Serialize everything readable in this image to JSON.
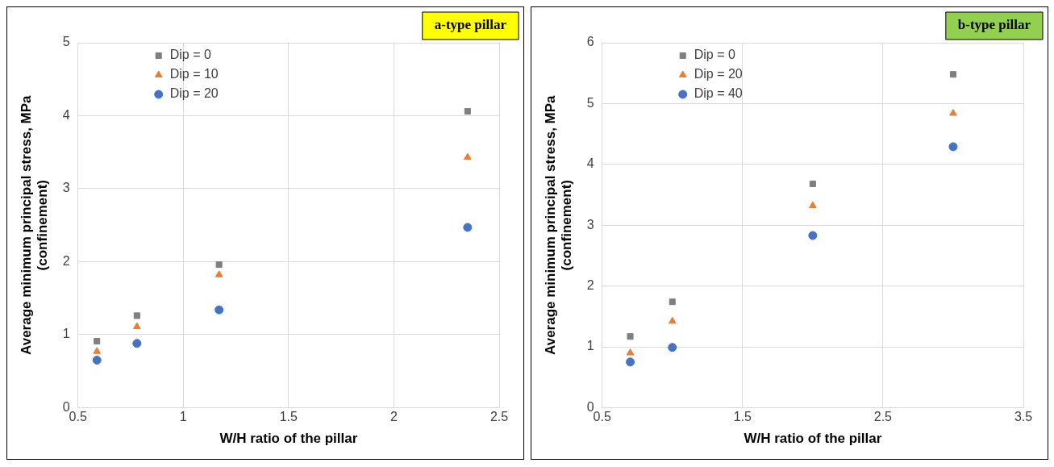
{
  "chart_data": [
    {
      "type": "scatter",
      "title": "a-type pillar",
      "xlabel": "W/H ratio of the pillar",
      "ylabel": "Average minimum principal stress, MPa\n(confinement)",
      "x": [
        0.59,
        0.78,
        1.17,
        2.35
      ],
      "xlim": [
        0.5,
        2.5
      ],
      "xticks": [
        0.5,
        1,
        1.5,
        2,
        2.5
      ],
      "ylim": [
        0,
        5
      ],
      "yticks": [
        0,
        1,
        2,
        3,
        4,
        5
      ],
      "grid": true,
      "legend": "top left",
      "series": [
        {
          "name": "Dip = 0",
          "color": "#7f7f7f",
          "marker": "square",
          "values": [
            0.91,
            1.26,
            1.96,
            4.06
          ]
        },
        {
          "name": "Dip = 10",
          "color": "#ed7d31",
          "marker": "triangle",
          "values": [
            0.77,
            1.11,
            1.82,
            3.43
          ]
        },
        {
          "name": "Dip = 20",
          "color": "#4472c4",
          "marker": "circle",
          "values": [
            0.65,
            0.88,
            1.34,
            2.47
          ]
        }
      ]
    },
    {
      "type": "scatter",
      "title": "b-type pillar",
      "xlabel": "W/H ratio of the pillar",
      "ylabel": "Average minimum principal stress, MPa\n(confinement)",
      "x": [
        0.7,
        1,
        2,
        3
      ],
      "xlim": [
        0.5,
        3.5
      ],
      "xticks": [
        0.5,
        1.5,
        2.5,
        3.5
      ],
      "ylim": [
        0,
        6
      ],
      "yticks": [
        0,
        1,
        2,
        3,
        4,
        5,
        6
      ],
      "grid": true,
      "legend": "top left",
      "series": [
        {
          "name": "Dip = 0",
          "color": "#7f7f7f",
          "marker": "square",
          "values": [
            1.17,
            1.74,
            3.68,
            5.48
          ]
        },
        {
          "name": "Dip = 20",
          "color": "#ed7d31",
          "marker": "triangle",
          "values": [
            0.9,
            1.42,
            3.32,
            4.84
          ]
        },
        {
          "name": "Dip = 40",
          "color": "#4472c4",
          "marker": "circle",
          "values": [
            0.75,
            0.99,
            2.83,
            4.29
          ]
        }
      ]
    }
  ]
}
